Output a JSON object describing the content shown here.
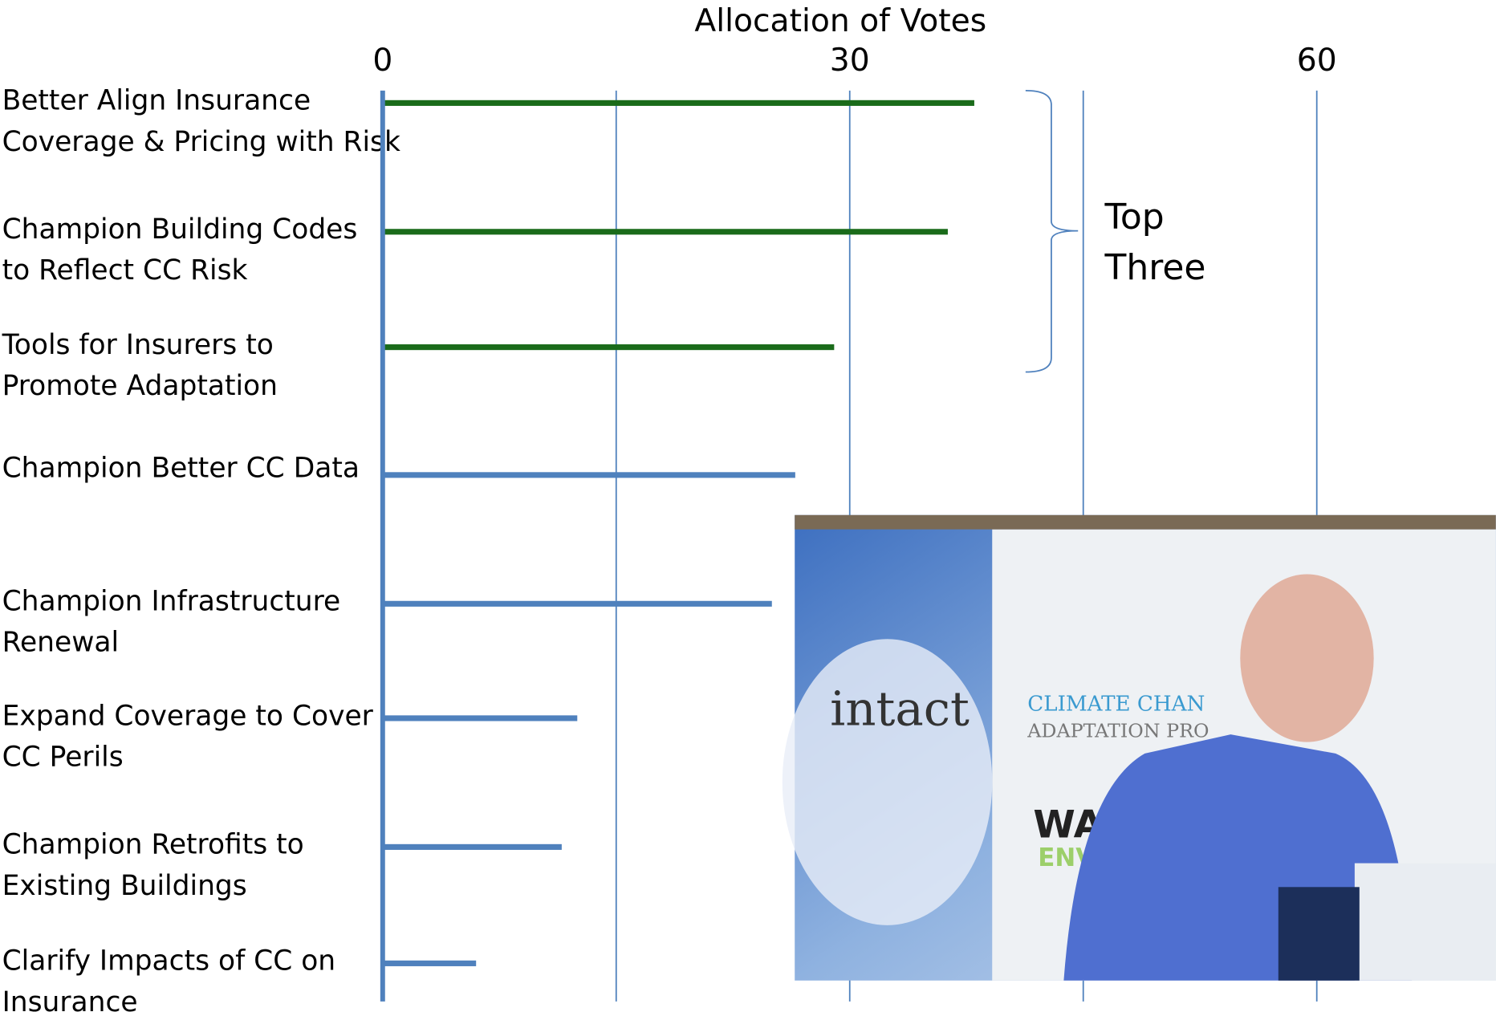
{
  "chart_data": {
    "type": "hbar",
    "title": "Allocation of Votes",
    "categories": [
      "Better Align Insurance\nCoverage & Pricing with Risk",
      "Champion Building Codes\nto Reflect CC Risk",
      "Tools for Insurers to\nPromote Adaptation",
      "Champion Better CC Data",
      "Champion Infrastructure\nRenewal",
      "Expand Coverage to Cover\nCC Perils",
      "Champion Retrofits to\nExisting Buildings",
      "Clarify Impacts of CC  on\nInsurance"
    ],
    "values": [
      38,
      36.3,
      29,
      26.5,
      25,
      12.5,
      11.5,
      6
    ],
    "colors": [
      "#1a6b1a",
      "#1a6b1a",
      "#1a6b1a",
      "#4f81bd",
      "#4f81bd",
      "#4f81bd",
      "#4f81bd",
      "#4f81bd"
    ],
    "xlim": [
      0,
      71.5
    ],
    "xticks": [
      0,
      30,
      60
    ],
    "minor_xticks": [
      15,
      45
    ],
    "grid": true,
    "annotation": "Top\nThree",
    "photo_texts": [
      "intact",
      "CLIMATE CHAN",
      "ADAPTATION PRO",
      "WAT",
      "ENV"
    ]
  }
}
